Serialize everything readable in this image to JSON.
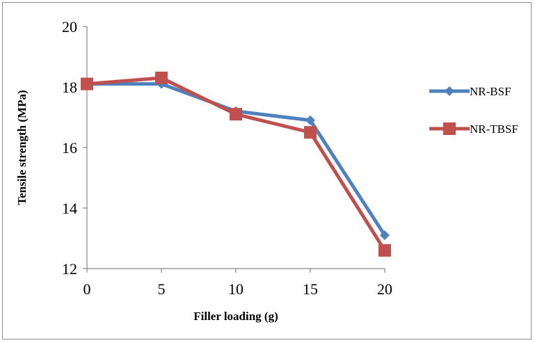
{
  "chart_data": {
    "type": "line",
    "x": [
      0,
      5,
      10,
      15,
      20
    ],
    "xlabel": "Filler loading (g)",
    "ylabel": "Tensile strength (MPa)",
    "xlim": [
      0,
      20
    ],
    "ylim": [
      12,
      20
    ],
    "xticks": [
      "0",
      "5",
      "10",
      "15",
      "20"
    ],
    "yticks": [
      "12",
      "14",
      "16",
      "18",
      "20"
    ],
    "grid": false,
    "legend_position": "right",
    "series": [
      {
        "name": "NR-BSF",
        "values": [
          18.1,
          18.1,
          17.2,
          16.9,
          13.1
        ],
        "color": "#4f81bd",
        "marker": "diamond"
      },
      {
        "name": "NR-TBSF",
        "values": [
          18.1,
          18.3,
          17.1,
          16.5,
          12.6
        ],
        "color": "#c0504d",
        "marker": "square"
      }
    ]
  }
}
